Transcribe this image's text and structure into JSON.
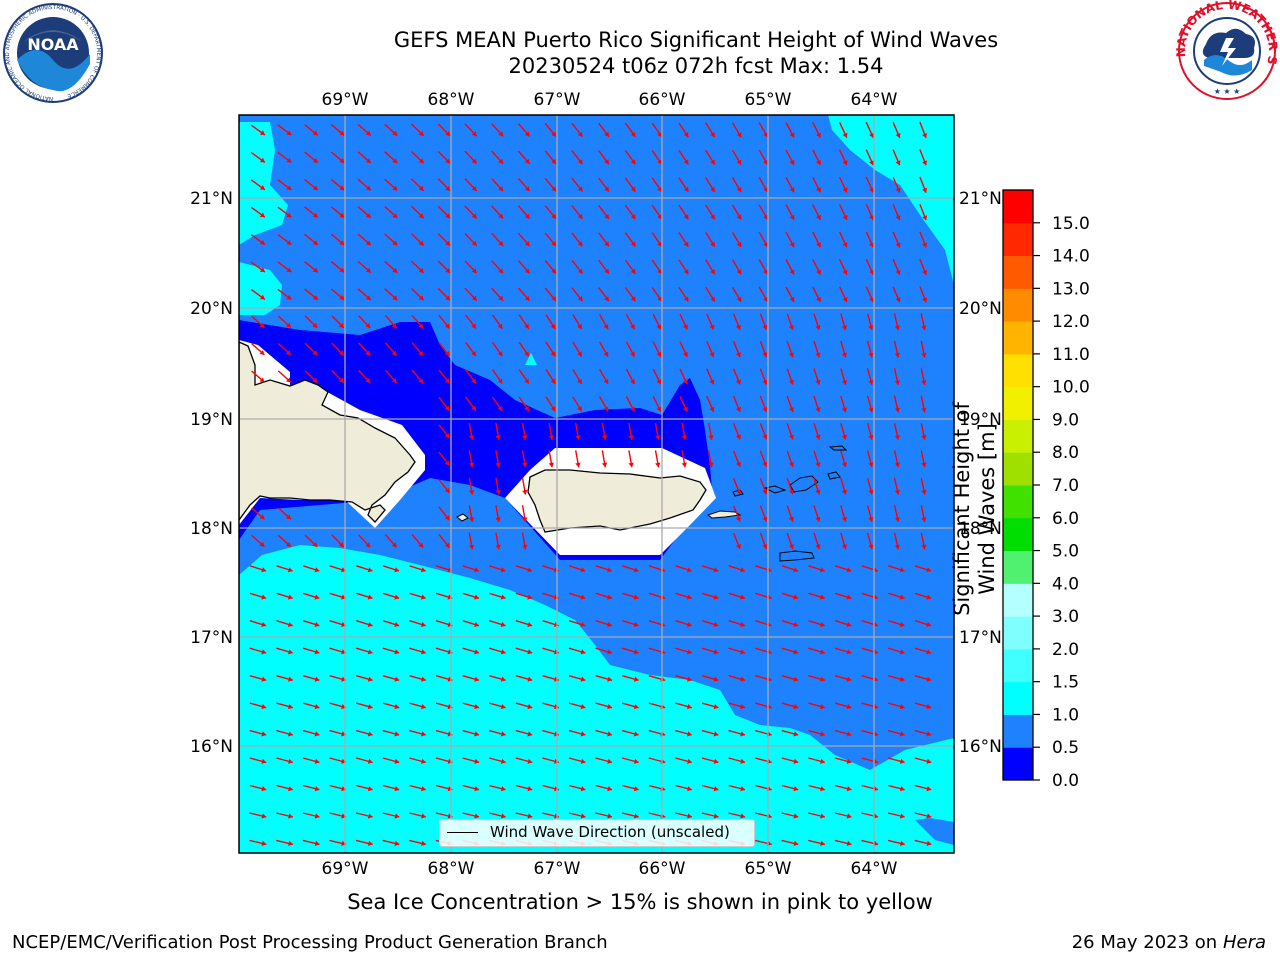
{
  "title_line1": "GEFS MEAN Puerto Rico Significant Height of Wind Waves",
  "title_line2": "20230524 t06z 072h fcst   Max: 1.54",
  "logos": {
    "left": "NOAA",
    "left_ring_text": "NATIONAL OCEANIC AND ATMOSPHERIC ADMINISTRATION · U.S. DEPARTMENT OF COMMERCE",
    "right_ring_text": "NATIONAL WEATHER SERVICE"
  },
  "axes": {
    "lon_labels": [
      "69°W",
      "68°W",
      "67°W",
      "66°W",
      "65°W",
      "64°W"
    ],
    "lat_labels": [
      "21°N",
      "20°N",
      "19°N",
      "18°N",
      "17°N",
      "16°N"
    ],
    "lon_range": [
      -70.0,
      -63.3
    ],
    "lat_range": [
      15.0,
      21.75
    ],
    "grid": true
  },
  "colorbar": {
    "label": "Significant Height of Wind Waves [m]",
    "ticks": [
      "0.0",
      "0.5",
      "1.0",
      "1.5",
      "2.0",
      "3.0",
      "4.0",
      "5.0",
      "6.0",
      "7.0",
      "8.0",
      "9.0",
      "10.0",
      "11.0",
      "12.0",
      "13.0",
      "14.0",
      "15.0"
    ],
    "colors": [
      "#0000ff",
      "#1e82ff",
      "#00ffff",
      "#40ffff",
      "#80ffff",
      "#b4ffff",
      "#50f070",
      "#00dd00",
      "#40e000",
      "#a0e000",
      "#c8f000",
      "#f0f000",
      "#ffe000",
      "#ffb400",
      "#ff8c00",
      "#ff5a00",
      "#ff2800",
      "#ff0000"
    ]
  },
  "legend": {
    "label": "Wind Wave Direction (unscaled)"
  },
  "note": "Sea Ice Concentration > 15% is shown in pink to yellow",
  "footer_left": "NCEP/EMC/Verification Post Processing Product Generation Branch",
  "footer_right_prefix": "26 May 2023 on",
  "footer_right_host": "Hera",
  "colors": {
    "deep_blue": "#0000ff",
    "mid_blue": "#1e82ff",
    "cyan": "#00ffff",
    "land": "#efedda",
    "arrow": "#ff0000"
  }
}
